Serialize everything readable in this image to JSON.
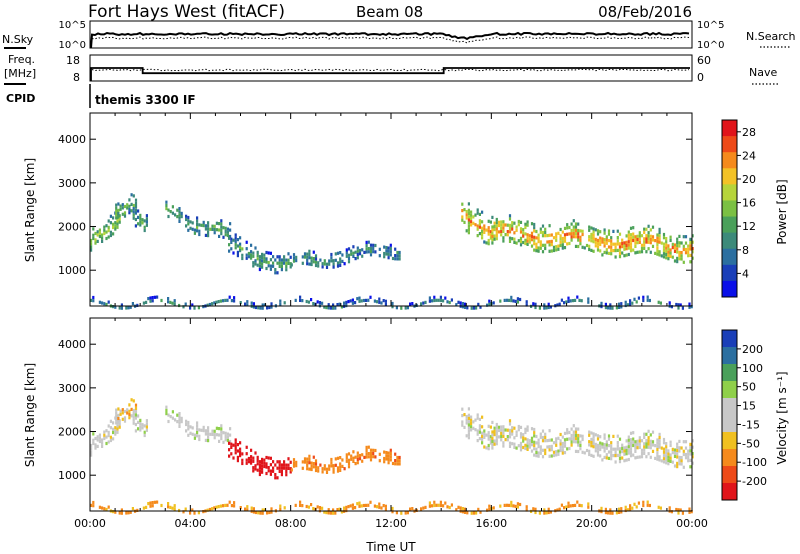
{
  "header": {
    "station": "Fort Hays West (fitACF)",
    "beam": "Beam 08",
    "date": "08/Feb/2016"
  },
  "summary_panel": {
    "nsky_label": "N.Sky",
    "nsky_ticks": [
      "10^5",
      "10^0"
    ],
    "nsearch_label": "N.Search",
    "nsearch_ticks": [
      "10^5",
      "10^0"
    ],
    "freq_label": "Freq.",
    "freq_unit": "[MHz]",
    "freq_ticks": [
      "18",
      "8"
    ],
    "nave_label": "Nave",
    "nave_ticks": [
      "60",
      "0"
    ],
    "cpid_label": "CPID",
    "cpid_value": "themis 3300 IF"
  },
  "colors": {
    "power_scale": [
      "#0a10e8",
      "#1a3fb8",
      "#2b6fa0",
      "#3c8a7a",
      "#4aa05a",
      "#7bc043",
      "#b6d43a",
      "#f3c226",
      "#f58a1c",
      "#ee4a18",
      "#e0141a"
    ],
    "velocity_scale": [
      "#e0141a",
      "#ee4a18",
      "#f58a1c",
      "#f0c020",
      "#c8c8c8",
      "#c8c8c8",
      "#8fd04a",
      "#4aa05a",
      "#2b6fa0",
      "#1a3fb8"
    ]
  },
  "chart_data": [
    {
      "type": "heatmap",
      "title": "",
      "xlabel": "",
      "ylabel": "Slant Range [km]",
      "x_range": [
        "00:00",
        "24:00"
      ],
      "ylim": [
        180,
        4600
      ],
      "y_ticks": [
        "1000",
        "2000",
        "3000",
        "4000"
      ],
      "colorbar": {
        "label": "Power [dB]",
        "ticks": [
          "4",
          "8",
          "12",
          "16",
          "20",
          "24",
          "28"
        ],
        "range": [
          0,
          30
        ]
      },
      "echo_regions": [
        {
          "start_hr": 0.0,
          "end_hr": 1.2,
          "center_start_km": 1600,
          "center_end_km": 2300,
          "width_km": 500,
          "level_db": 15
        },
        {
          "start_hr": 1.0,
          "end_hr": 1.8,
          "center_start_km": 2400,
          "center_end_km": 2700,
          "width_km": 400,
          "level_db": 13
        },
        {
          "start_hr": 1.7,
          "end_hr": 2.3,
          "center_start_km": 2300,
          "center_end_km": 2000,
          "width_km": 400,
          "level_db": 11
        },
        {
          "start_hr": 3.0,
          "end_hr": 5.6,
          "center_start_km": 2400,
          "center_end_km": 1800,
          "width_km": 400,
          "level_db": 12
        },
        {
          "start_hr": 5.5,
          "end_hr": 8.0,
          "center_start_km": 1600,
          "center_end_km": 1100,
          "width_km": 450,
          "level_db": 10
        },
        {
          "start_hr": 8.0,
          "end_hr": 12.3,
          "center_start_km": 1200,
          "center_end_km": 1500,
          "width_km": 350,
          "level_db": 9
        },
        {
          "start_hr": 14.8,
          "end_hr": 16.0,
          "center_start_km": 2400,
          "center_end_km": 1900,
          "width_km": 700,
          "level_db": 20
        },
        {
          "start_hr": 16.0,
          "end_hr": 24.0,
          "center_start_km": 1900,
          "center_end_km": 1550,
          "width_km": 650,
          "level_db": 21
        },
        {
          "start_hr": 0.0,
          "end_hr": 24.0,
          "center_start_km": 270,
          "center_end_km": 270,
          "width_km": 120,
          "level_db": 8
        }
      ]
    },
    {
      "type": "heatmap",
      "title": "",
      "xlabel": "Time UT",
      "ylabel": "Slant Range [km]",
      "x_range": [
        "00:00",
        "24:00"
      ],
      "x_ticks": [
        "00:00",
        "04:00",
        "08:00",
        "12:00",
        "16:00",
        "20:00",
        "00:00"
      ],
      "ylim": [
        180,
        4600
      ],
      "y_ticks": [
        "1000",
        "2000",
        "3000",
        "4000"
      ],
      "colorbar": {
        "label": "Velocity [m s⁻¹]",
        "ticks": [
          "200",
          "100",
          "50",
          "15",
          "-15",
          "-50",
          "-100",
          "-200"
        ],
        "range": [
          -250,
          250
        ]
      },
      "echo_regions": [
        {
          "start_hr": 0.0,
          "end_hr": 1.2,
          "center_start_km": 1600,
          "center_end_km": 2300,
          "width_km": 500,
          "vel_ms": 0
        },
        {
          "start_hr": 1.0,
          "end_hr": 1.8,
          "center_start_km": 2400,
          "center_end_km": 2700,
          "width_km": 400,
          "vel_ms": -20
        },
        {
          "start_hr": 1.7,
          "end_hr": 2.3,
          "center_start_km": 2300,
          "center_end_km": 2000,
          "width_km": 400,
          "vel_ms": 0
        },
        {
          "start_hr": 3.0,
          "end_hr": 5.6,
          "center_start_km": 2400,
          "center_end_km": 1800,
          "width_km": 400,
          "vel_ms": 5
        },
        {
          "start_hr": 5.5,
          "end_hr": 8.0,
          "center_start_km": 1600,
          "center_end_km": 1100,
          "width_km": 450,
          "vel_ms": -210
        },
        {
          "start_hr": 8.0,
          "end_hr": 12.3,
          "center_start_km": 1200,
          "center_end_km": 1500,
          "width_km": 350,
          "vel_ms": -60
        },
        {
          "start_hr": 14.8,
          "end_hr": 16.0,
          "center_start_km": 2400,
          "center_end_km": 1900,
          "width_km": 700,
          "vel_ms": 0
        },
        {
          "start_hr": 16.0,
          "end_hr": 24.0,
          "center_start_km": 1900,
          "center_end_km": 1550,
          "width_km": 650,
          "vel_ms": 0
        },
        {
          "start_hr": 0.0,
          "end_hr": 24.0,
          "center_start_km": 270,
          "center_end_km": 270,
          "width_km": 120,
          "vel_ms": -40
        }
      ]
    }
  ]
}
